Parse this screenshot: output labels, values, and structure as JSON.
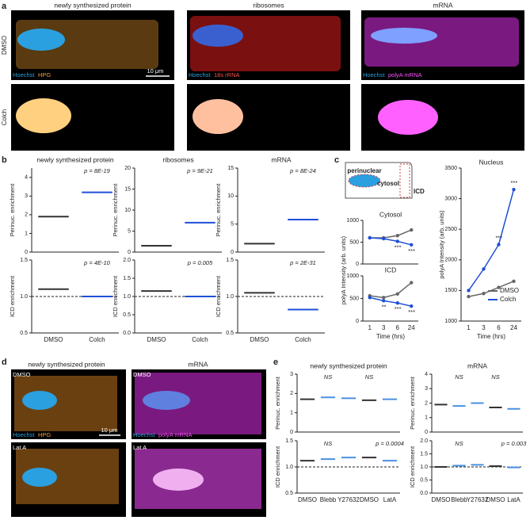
{
  "figure": {
    "panel_a": {
      "letter": "a",
      "columns": [
        "newly synthesized protein",
        "ribosomes",
        "mRNA"
      ],
      "rows": [
        "DMSO",
        "Colch"
      ],
      "stains": [
        [
          "Hoechst",
          "HPG"
        ],
        [
          "Hoechst",
          "18s rRNA"
        ],
        [
          "Hoechst",
          "polyA mRNA"
        ]
      ],
      "scale": "10 μm"
    },
    "panel_b": {
      "letter": "b"
    },
    "panel_c": {
      "letter": "c",
      "schematic": [
        "perinuclear",
        "cytosol",
        "ICD"
      ]
    },
    "panel_d": {
      "letter": "d",
      "columns": [
        "newly synthesized protein",
        "mRNA"
      ],
      "rows": [
        "DMSO",
        "Lat A"
      ],
      "stains": [
        [
          "Hoechst",
          "HPG"
        ],
        [
          "Hoechst",
          "polyA mRNA"
        ]
      ],
      "scale": "10 μm"
    },
    "panel_e": {
      "letter": "e"
    }
  },
  "chart_data": [
    {
      "type": "strip",
      "title": "newly synthesized protein",
      "ylabel": "Perinuc. enrichment",
      "values": [
        1.9,
        3.2
      ],
      "colors": [
        "#333333",
        "#1f4fd8"
      ],
      "annotations": [
        null,
        "p = 8E-19"
      ],
      "ylim": [
        0,
        4.5
      ],
      "yticks": [
        0,
        1,
        2,
        3,
        4
      ]
    },
    {
      "type": "strip",
      "ylabel": "ICD enrichment",
      "categories": [
        "DMSO",
        "Colch"
      ],
      "values": [
        1.1,
        1.0
      ],
      "colors": [
        "#333333",
        "#1f4fd8"
      ],
      "annotations": [
        null,
        "p = 4E-10"
      ],
      "ylim": [
        0.5,
        1.5
      ],
      "yticks": [
        {
          "value": 0.5,
          "label": "0.5"
        },
        {
          "value": 1,
          "label": "1.0"
        },
        {
          "value": 1.5,
          "label": "1.5"
        }
      ],
      "reference": 1
    },
    {
      "type": "strip",
      "title": "ribosomes",
      "ylabel": "Perinuc. enrichment",
      "values": [
        1.5,
        7
      ],
      "colors": [
        "#333333",
        "#1f4fd8"
      ],
      "annotations": [
        null,
        "p = 9E-21"
      ],
      "ylim": [
        0,
        20
      ],
      "yticks": [
        0,
        5,
        10,
        15,
        20
      ]
    },
    {
      "type": "strip",
      "ylabel": "ICD enrichment",
      "categories": [
        "DMSO",
        "Colch"
      ],
      "values": [
        1.15,
        1.0
      ],
      "colors": [
        "#333333",
        "#1f4fd8"
      ],
      "annotations": [
        null,
        "p = 0.005"
      ],
      "ylim": [
        0,
        2
      ],
      "yticks": [
        {
          "value": 0,
          "label": "0.0"
        },
        {
          "value": 0.5,
          "label": "0.5"
        },
        {
          "value": 1,
          "label": "1.0"
        },
        {
          "value": 1.5,
          "label": "1.5"
        },
        {
          "value": 2,
          "label": "2.0"
        }
      ],
      "reference": 1
    },
    {
      "type": "strip",
      "title": "mRNA",
      "ylabel": "Perinuc. enrichment",
      "values": [
        1.5,
        5.8
      ],
      "colors": [
        "#333333",
        "#1f4fd8"
      ],
      "annotations": [
        null,
        "p = 8E-24"
      ],
      "ylim": [
        0,
        15
      ],
      "yticks": [
        0,
        5,
        10,
        15
      ]
    },
    {
      "type": "strip",
      "ylabel": "ICD enrichment",
      "categories": [
        "DMSO",
        "Colch"
      ],
      "values": [
        1.05,
        0.82
      ],
      "colors": [
        "#333333",
        "#1f4fd8"
      ],
      "annotations": [
        null,
        "p = 2E-31"
      ],
      "ylim": [
        0.5,
        1.5
      ],
      "yticks": [
        {
          "value": 0.5,
          "label": "0.5"
        },
        {
          "value": 1,
          "label": "1.0"
        },
        {
          "value": 1.5,
          "label": "1.5"
        }
      ],
      "reference": 1
    },
    {
      "type": "line",
      "title": "Cytosol",
      "ylabel": "polyA Intensity (arb. units)",
      "series": [
        {
          "name": "DMSO",
          "color": "#666666",
          "values": [
            600,
            600,
            650,
            780
          ]
        },
        {
          "name": "Colch",
          "color": "#1f4fd8",
          "values": [
            600,
            580,
            520,
            440
          ]
        }
      ],
      "annotations": [
        null,
        null,
        "***",
        "***"
      ],
      "ylim": [
        0,
        1000
      ],
      "yticks": [
        0,
        500,
        1000
      ]
    },
    {
      "type": "line",
      "title": "ICD",
      "xlabel": "Time (hrs)",
      "categories": [
        "1",
        "3",
        "6",
        "24"
      ],
      "series": [
        {
          "name": "DMSO",
          "color": "#666666",
          "values": [
            560,
            520,
            600,
            850
          ]
        },
        {
          "name": "Colch",
          "color": "#1f4fd8",
          "values": [
            520,
            450,
            400,
            330
          ]
        }
      ],
      "annotations": [
        null,
        "**",
        "***",
        "***"
      ],
      "ylim": [
        0,
        1000
      ],
      "yticks": [
        0,
        500,
        1000
      ]
    },
    {
      "type": "line",
      "title": "Nucleus",
      "xlabel": "Time (hrs)",
      "ylabel": "polyA Intensity (arb. units)",
      "categories": [
        "1",
        "3",
        "6",
        "24"
      ],
      "series": [
        {
          "name": "DMSO",
          "color": "#666666",
          "values": [
            1400,
            1450,
            1550,
            1650
          ]
        },
        {
          "name": "Colch",
          "color": "#1f4fd8",
          "values": [
            1500,
            1850,
            2250,
            3150
          ]
        }
      ],
      "annotations": [
        null,
        null,
        "***",
        "***"
      ],
      "ylim": [
        1000,
        3500
      ],
      "yticks": [
        1000,
        1500,
        2000,
        2500,
        3000,
        3500
      ],
      "legend": "lower-right"
    },
    {
      "type": "strip",
      "title": "newly synthesized protein",
      "ylabel": "Perinuc. enrichment",
      "values": [
        1.7,
        1.8,
        1.75,
        1.65,
        1.7
      ],
      "colors": [
        "#333333",
        "#4a90e2",
        "#4a90e2",
        "#333333",
        "#4a90e2"
      ],
      "annotations": [
        null,
        "NS",
        null,
        "NS",
        null
      ],
      "ylim": [
        0,
        3
      ],
      "yticks": [
        0,
        1,
        2,
        3
      ]
    },
    {
      "type": "strip",
      "ylabel": "ICD enrichment",
      "categories": [
        "DMSO",
        "Blebb",
        "Y27632",
        "DMSO",
        "LatA"
      ],
      "values": [
        1.12,
        1.15,
        1.18,
        1.18,
        1.12
      ],
      "colors": [
        "#333333",
        "#4a90e2",
        "#4a90e2",
        "#333333",
        "#4a90e2"
      ],
      "annotations": [
        null,
        "NS",
        null,
        null,
        "p = 0.0004"
      ],
      "ylim": [
        0.5,
        1.5
      ],
      "yticks": [
        {
          "value": 0.5,
          "label": "0.5"
        },
        {
          "value": 1,
          "label": "1.0"
        },
        {
          "value": 1.5,
          "label": "1.5"
        }
      ],
      "reference": 1
    },
    {
      "type": "strip",
      "title": "mRNA",
      "ylabel": "Perinuc. enrichment",
      "values": [
        1.9,
        1.8,
        2.0,
        1.7,
        1.6
      ],
      "colors": [
        "#333333",
        "#4a90e2",
        "#4a90e2",
        "#333333",
        "#4a90e2"
      ],
      "annotations": [
        null,
        "NS",
        null,
        "NS",
        null
      ],
      "ylim": [
        0,
        4
      ],
      "yticks": [
        0,
        1,
        2,
        3,
        4
      ]
    },
    {
      "type": "strip",
      "ylabel": "ICD enrichment",
      "categories": [
        "DMSO",
        "Blebb",
        "Y27632",
        "DMSO",
        "LatA"
      ],
      "values": [
        1.0,
        1.05,
        1.08,
        1.03,
        0.98
      ],
      "colors": [
        "#333333",
        "#4a90e2",
        "#4a90e2",
        "#333333",
        "#4a90e2"
      ],
      "annotations": [
        null,
        "NS",
        null,
        null,
        "p = 0.003"
      ],
      "ylim": [
        0,
        2
      ],
      "yticks": [
        {
          "value": 0,
          "label": "0.0"
        },
        {
          "value": 0.5,
          "label": "0.5"
        },
        {
          "value": 1,
          "label": "1.0"
        },
        {
          "value": 1.5,
          "label": "1.5"
        },
        {
          "value": 2,
          "label": "2.0"
        }
      ],
      "reference": 1
    }
  ]
}
